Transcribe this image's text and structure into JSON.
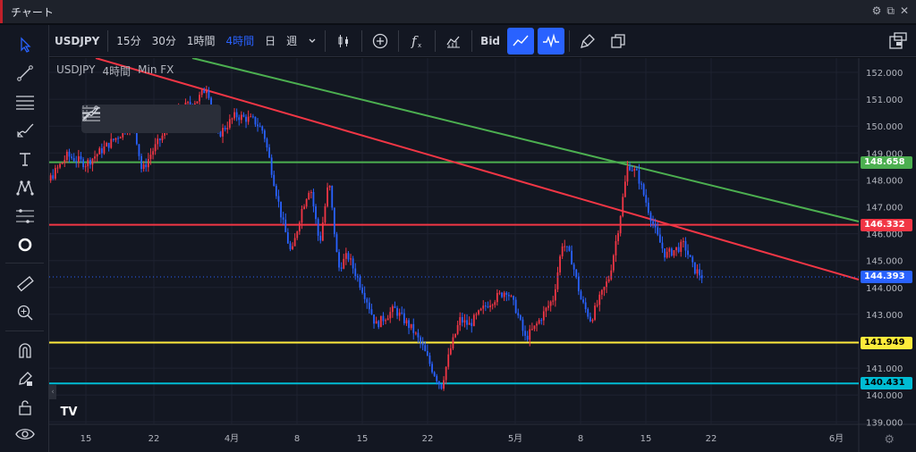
{
  "window": {
    "title": "チャート"
  },
  "toolbar": {
    "symbol": "USDJPY",
    "intervals": [
      "15分",
      "30分",
      "1時間",
      "4時間",
      "日",
      "週"
    ],
    "active_interval": "4時間",
    "bid_label": "Bid"
  },
  "legend": {
    "symbol": "USDJPY",
    "interval": "4時間",
    "source": "Min FX"
  },
  "price_axis": {
    "labels": [
      "152.000",
      "151.000",
      "150.000",
      "149.000",
      "148.000",
      "147.000",
      "146.000",
      "145.000",
      "144.000",
      "143.000",
      "142.000",
      "141.000",
      "140.000",
      "139.000"
    ]
  },
  "time_axis": {
    "labels": [
      "15",
      "22",
      "4月",
      "8",
      "15",
      "22",
      "5月",
      "8",
      "15",
      "22",
      "6月"
    ]
  },
  "price_tags": [
    {
      "value": "148.658",
      "color": "#4caf50",
      "text_color": "#ffffff"
    },
    {
      "value": "146.332",
      "color": "#f23645",
      "text_color": "#ffffff"
    },
    {
      "value": "144.393",
      "color": "#2962ff",
      "text_color": "#ffffff"
    },
    {
      "value": "141.949",
      "color": "#ffeb3b",
      "text_color": "#000000"
    },
    {
      "value": "140.431",
      "color": "#00bcd4",
      "text_color": "#000000"
    }
  ],
  "colors": {
    "up": "#f23645",
    "down": "#2962ff",
    "green_line": "#4caf50",
    "red_line": "#f23645",
    "yellow_line": "#ffeb3b",
    "cyan_line": "#00bcd4"
  },
  "chart_data": {
    "type": "line",
    "y_axis_range": [
      138.8,
      152.6
    ],
    "horizontal_levels": [
      148.658,
      146.332,
      141.949,
      140.431
    ],
    "price_path": [
      [
        "03-08",
        148.0
      ],
      [
        "03-10",
        147.5
      ],
      [
        "03-13",
        148.9
      ],
      [
        "03-15",
        148.6
      ],
      [
        "03-19",
        149.8
      ],
      [
        "03-20",
        150.4
      ],
      [
        "03-21",
        148.3
      ],
      [
        "03-22",
        149.0
      ],
      [
        "03-25",
        150.6
      ],
      [
        "03-27",
        151.0
      ],
      [
        "03-28",
        151.5
      ],
      [
        "03-29",
        149.6
      ],
      [
        "03-31",
        150.4
      ],
      [
        "04-02",
        150.2
      ],
      [
        "04-03",
        149.8
      ],
      [
        "04-05",
        146.5
      ],
      [
        "04-06",
        145.2
      ],
      [
        "04-07",
        146.8
      ],
      [
        "04-08",
        147.8
      ],
      [
        "04-09",
        145.6
      ],
      [
        "04-10",
        148.0
      ],
      [
        "04-11",
        144.7
      ],
      [
        "04-12",
        145.2
      ],
      [
        "04-14",
        143.6
      ],
      [
        "04-15",
        142.6
      ],
      [
        "04-17",
        143.2
      ],
      [
        "04-19",
        142.4
      ],
      [
        "04-20",
        141.8
      ],
      [
        "04-21",
        141.0
      ],
      [
        "04-22",
        140.3
      ],
      [
        "04-23",
        141.7
      ],
      [
        "04-24",
        142.8
      ],
      [
        "04-25",
        142.6
      ],
      [
        "04-27",
        143.4
      ],
      [
        "04-29",
        143.9
      ],
      [
        "04-30",
        143.2
      ],
      [
        "05-01",
        142.1
      ],
      [
        "05-02",
        142.5
      ],
      [
        "05-04",
        143.6
      ],
      [
        "05-05",
        145.7
      ],
      [
        "05-06",
        145.0
      ],
      [
        "05-07",
        143.5
      ],
      [
        "05-08",
        142.8
      ],
      [
        "05-10",
        144.4
      ],
      [
        "05-11",
        146.3
      ],
      [
        "05-12",
        148.6
      ],
      [
        "05-13",
        148.2
      ],
      [
        "05-14",
        147.1
      ],
      [
        "05-15",
        146.0
      ],
      [
        "05-16",
        145.2
      ],
      [
        "05-18",
        145.6
      ],
      [
        "05-19",
        144.7
      ],
      [
        "05-20",
        144.4
      ]
    ]
  }
}
